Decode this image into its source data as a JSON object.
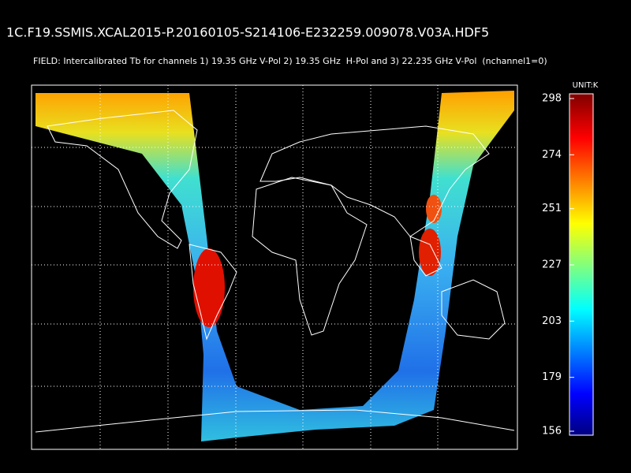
{
  "header": {
    "title": "1C.F19.SSMIS.XCAL2015-P.20160105-S214106-E232259.009078.V03A.HDF5",
    "field": "FIELD: Intercalibrated Tb for channels 1) 19.35 GHz V-Pol 2) 19.35 GHz  H-Pol and 3) 22.235 GHz V-Pol  (nchannel1=0)"
  },
  "colorbar": {
    "unit": "UNIT:K",
    "ticks": [
      156,
      179,
      203,
      227,
      251,
      274,
      298
    ]
  }
}
